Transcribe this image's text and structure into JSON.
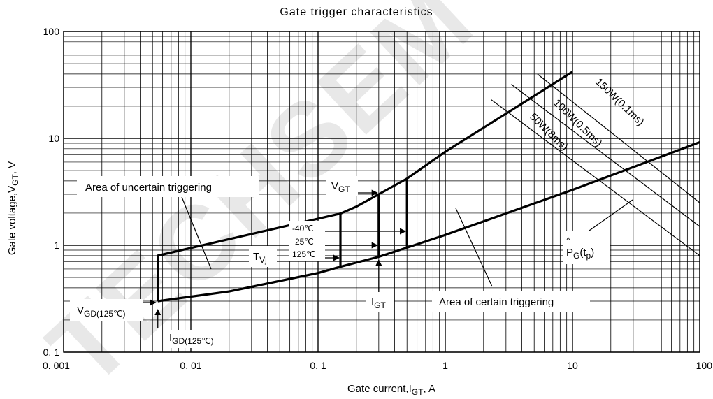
{
  "chart_data": {
    "type": "line",
    "title": "Gate trigger characteristics",
    "xlabel": {
      "main": "Gate current,I",
      "sub": "GT",
      "unit": ",  A"
    },
    "ylabel": {
      "main": "Gate voltage,V",
      "sub": "GT",
      "unit": ",  V"
    },
    "xscale": "log",
    "yscale": "log",
    "xlim": [
      0.001,
      100
    ],
    "ylim": [
      0.1,
      100
    ],
    "grid": true,
    "x_ticks": [
      {
        "v": 0.001,
        "label": "0. 001"
      },
      {
        "v": 0.01,
        "label": "0. 01"
      },
      {
        "v": 0.1,
        "label": "0. 1"
      },
      {
        "v": 1,
        "label": "1"
      },
      {
        "v": 10,
        "label": "10"
      },
      {
        "v": 100,
        "label": "100"
      }
    ],
    "y_ticks": [
      {
        "v": 0.1,
        "label": "0. 1"
      },
      {
        "v": 1,
        "label": "1"
      },
      {
        "v": 10,
        "label": "10"
      },
      {
        "v": 100,
        "label": "100"
      }
    ],
    "series": [
      {
        "id": "upper-boundary",
        "points": [
          [
            0.0055,
            0.3
          ],
          [
            0.0055,
            0.8
          ],
          [
            0.15,
            1.98
          ],
          [
            0.2,
            2.3
          ],
          [
            0.3,
            3.0
          ],
          [
            0.5,
            4.2
          ],
          [
            1,
            7.5
          ],
          [
            3,
            17
          ],
          [
            10,
            42
          ]
        ]
      },
      {
        "id": "lower-boundary",
        "points": [
          [
            0.0055,
            0.3
          ],
          [
            0.02,
            0.37
          ],
          [
            0.1,
            0.55
          ],
          [
            0.15,
            0.63
          ],
          [
            0.3,
            0.78
          ],
          [
            0.5,
            0.95
          ],
          [
            1,
            1.25
          ],
          [
            10,
            3.3
          ],
          [
            100,
            9.2
          ]
        ]
      },
      {
        "id": "vgt-125C",
        "points": [
          [
            0.15,
            0.63
          ],
          [
            0.15,
            1.98
          ]
        ]
      },
      {
        "id": "vgt-25C",
        "points": [
          [
            0.3,
            0.78
          ],
          [
            0.3,
            3.0
          ]
        ]
      },
      {
        "id": "vgt-minus40C",
        "points": [
          [
            0.5,
            0.95
          ],
          [
            0.5,
            4.2
          ]
        ]
      },
      {
        "id": "pg-50w-8ms",
        "points": [
          [
            2.3,
            23
          ],
          [
            100,
            0.8
          ]
        ]
      },
      {
        "id": "pg-100w-0.5ms",
        "points": [
          [
            3.3,
            32
          ],
          [
            100,
            1.5
          ]
        ]
      },
      {
        "id": "pg-150w-0.1ms",
        "points": [
          [
            5.3,
            40
          ],
          [
            100,
            2.5
          ]
        ]
      }
    ],
    "annotations": {
      "uncertain": "Area of uncertain triggering",
      "certain": "Area of certain triggering",
      "pg_150": "150W(0.1ms)",
      "pg_100": "100W(0.5ms)",
      "pg_50": "50W(8ms)",
      "pg_hat": "^",
      "pg_main": "P",
      "pg_sub": "G",
      "pg_tail": "(t",
      "pg_sub2": "p",
      "pg_end": ")",
      "vgt_main": "V",
      "vgt_sub": "GT",
      "igt_main": "I",
      "igt_sub": "GT",
      "tvj_main": "T",
      "tvj_sub": "Vj",
      "temp_m40": "-40℃",
      "temp_25": "25℃",
      "temp_125": "125℃",
      "vgd_main": "V",
      "vgd_sub": "GD(125℃)",
      "igd_main": "I",
      "igd_sub": "GD(125℃)"
    },
    "watermark": "TECHSEM"
  }
}
